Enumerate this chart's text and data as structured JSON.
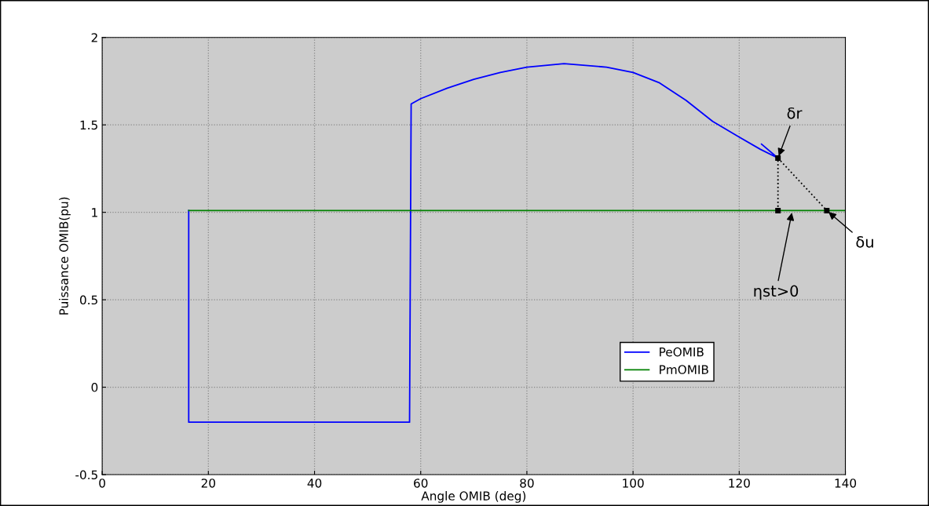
{
  "chart_data": {
    "type": "line",
    "xlabel": "Angle OMIB (deg)",
    "ylabel": "Puissance OMIB(pu)",
    "xlim": [
      0,
      140
    ],
    "xticks": [
      0,
      20,
      40,
      60,
      80,
      100,
      120,
      140
    ],
    "ylim": [
      -0.5,
      2
    ],
    "yticks": [
      -0.5,
      0,
      0.5,
      1,
      1.5,
      2
    ],
    "grid": true,
    "legend": "bottom",
    "line_style": "solid",
    "series": [
      {
        "name": "PeOMIB",
        "color": "#0000ff",
        "x": [
          16.3,
          16.3,
          30,
          57.9,
          58.2,
          60,
          65,
          70,
          75,
          80,
          87,
          95,
          100,
          105,
          110,
          115,
          120,
          124,
          127.3,
          124.2
        ],
        "values": [
          1.01,
          -0.2,
          -0.2,
          -0.2,
          1.62,
          1.65,
          1.71,
          1.76,
          1.8,
          1.83,
          1.85,
          1.83,
          1.8,
          1.74,
          1.64,
          1.52,
          1.43,
          1.36,
          1.31,
          1.39
        ]
      },
      {
        "name": "PmOMIB",
        "color": "#008000",
        "x": [
          16.3,
          140
        ],
        "values": [
          1.01,
          1.01
        ]
      },
      {
        "color": "#000000",
        "line_style": "dotted",
        "marker": "square",
        "x": [
          127.3,
          127.3,
          136.5
        ],
        "values": [
          1.01,
          1.31,
          1.01
        ]
      }
    ],
    "annotations": [
      {
        "text": "δr",
        "x": 127.3,
        "y": 1.31
      },
      {
        "text": "ηst>0",
        "x": 130,
        "y": 1.01
      },
      {
        "text": "δu",
        "x": 136.5,
        "y": 1.01
      }
    ]
  }
}
